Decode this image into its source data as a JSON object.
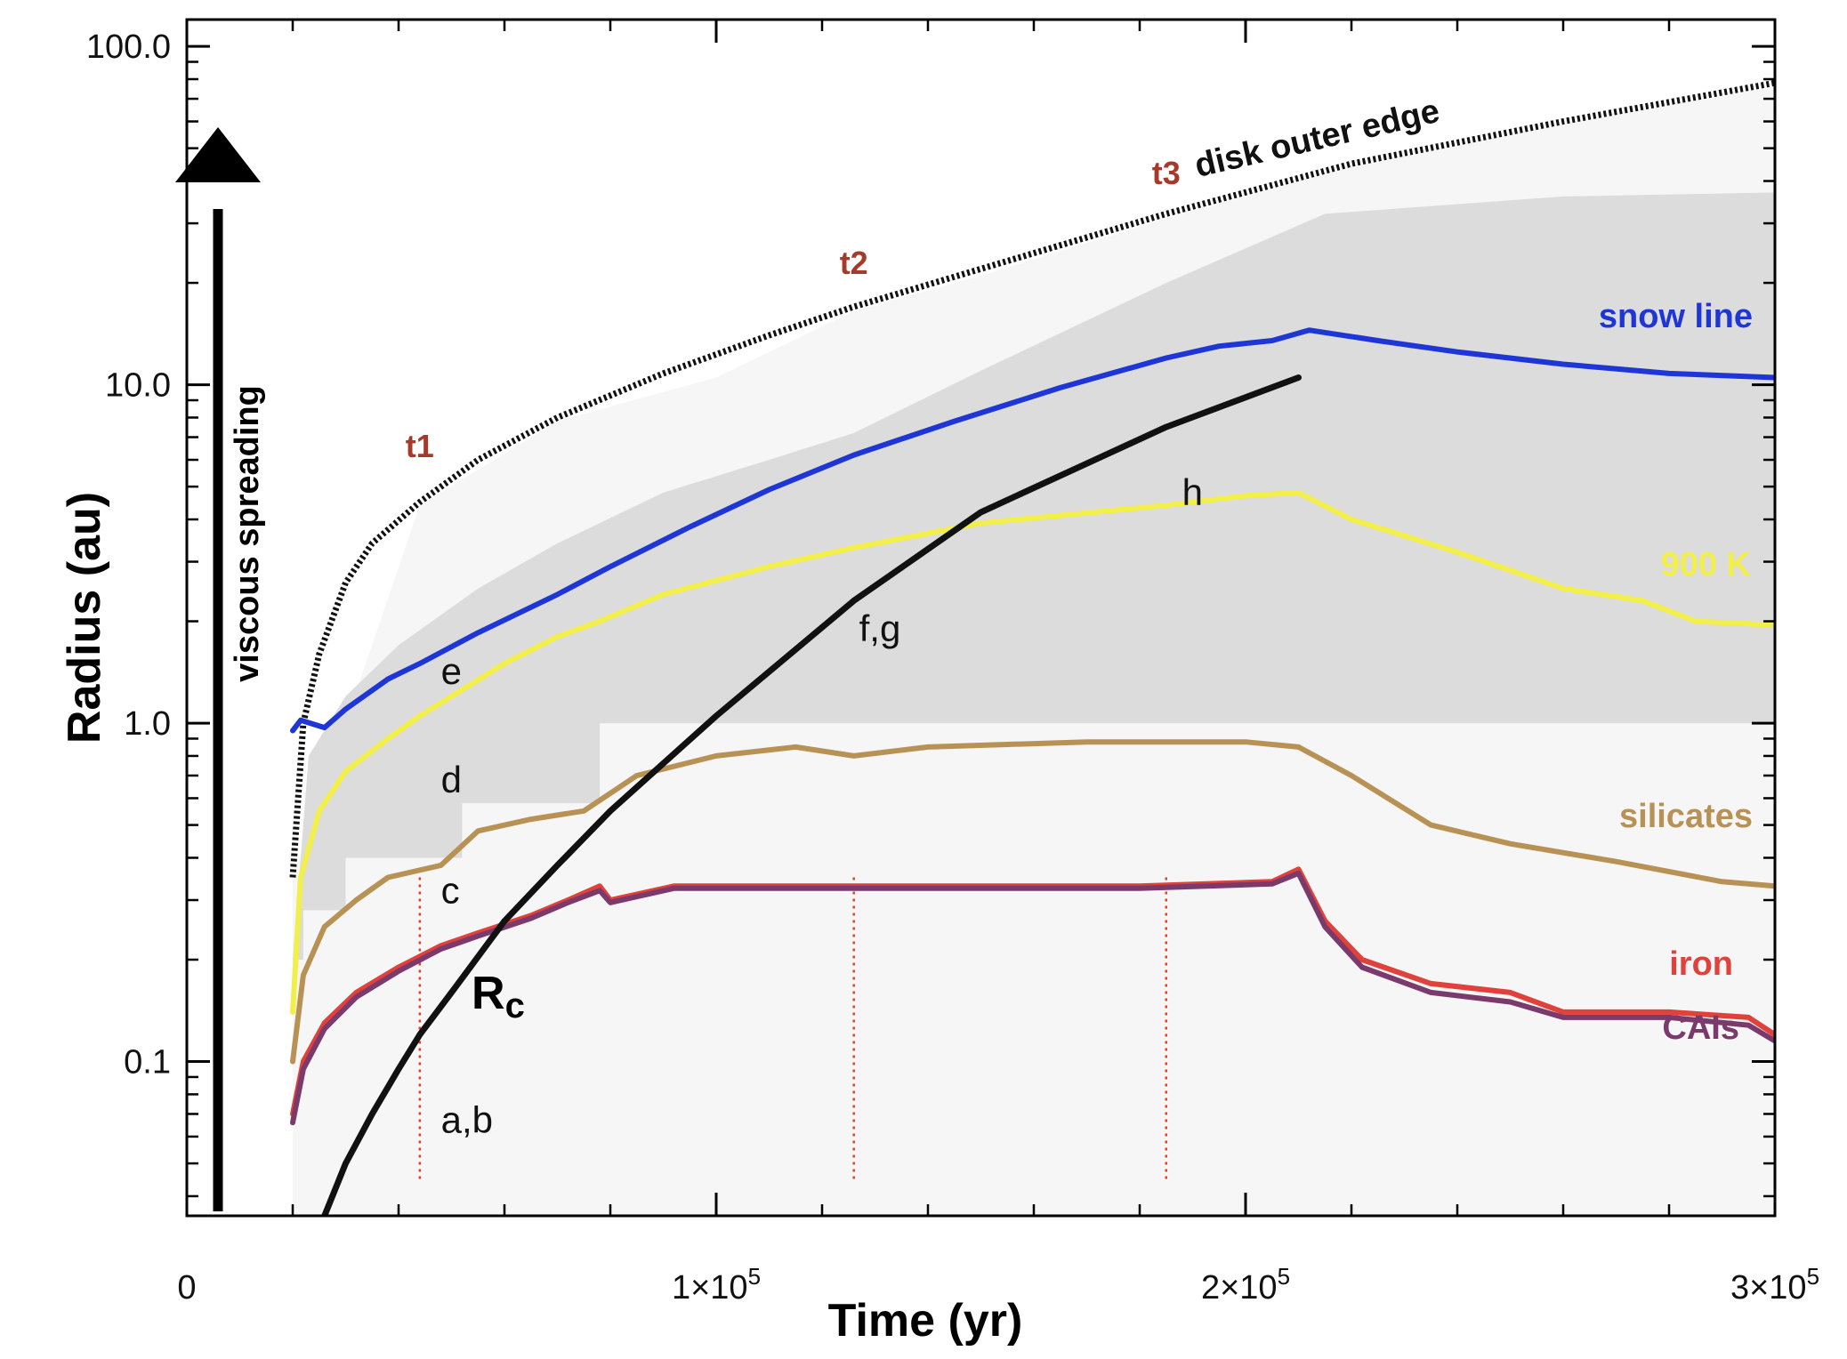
{
  "chart_data": {
    "type": "line",
    "xlabel": "Time (yr)",
    "ylabel": "Radius (au)",
    "xlim": [
      0,
      300000
    ],
    "ylim": [
      0.035,
      120
    ],
    "yscale": "log",
    "x_ticks": [
      {
        "value": 0,
        "label": "0"
      },
      {
        "value": 100000,
        "label": "1×10",
        "sup": "5"
      },
      {
        "value": 200000,
        "label": "2×10",
        "sup": "5"
      },
      {
        "value": 300000,
        "label": "3×10",
        "sup": "5"
      }
    ],
    "y_ticks": [
      {
        "value": 0.1,
        "label": "0.1"
      },
      {
        "value": 1.0,
        "label": "1.0"
      },
      {
        "value": 10.0,
        "label": "10.0"
      },
      {
        "value": 100.0,
        "label": "100.0"
      }
    ],
    "arrow_label": "viscous spreading",
    "time_markers": [
      {
        "name": "t1",
        "x": 44000
      },
      {
        "name": "t2",
        "x": 126000
      },
      {
        "name": "t3",
        "x": 185000
      }
    ],
    "series": [
      {
        "name": "disk outer edge",
        "color": "#111111",
        "style": "dotted",
        "x": [
          20000,
          22000,
          25000,
          30000,
          35000,
          44000,
          55000,
          70000,
          90000,
          110000,
          126000,
          150000,
          185000,
          220000,
          260000,
          300000
        ],
        "y": [
          0.35,
          1.0,
          1.6,
          2.6,
          3.4,
          4.5,
          6.0,
          8.0,
          10.8,
          14.0,
          17.0,
          22.0,
          32.0,
          45.0,
          60.0,
          78.0
        ]
      },
      {
        "name": "snow line",
        "color": "#1f36d6",
        "style": "solid",
        "x": [
          20000,
          21500,
          26000,
          30000,
          38000,
          44000,
          55000,
          70000,
          80000,
          95000,
          110000,
          126000,
          145000,
          165000,
          185000,
          195000,
          205000,
          212000,
          225000,
          240000,
          260000,
          280000,
          300000
        ],
        "y": [
          0.95,
          1.02,
          0.97,
          1.1,
          1.35,
          1.5,
          1.85,
          2.4,
          2.9,
          3.8,
          4.9,
          6.2,
          7.8,
          9.8,
          12.0,
          13.0,
          13.5,
          14.5,
          13.5,
          12.5,
          11.5,
          10.8,
          10.5
        ]
      },
      {
        "name": "900 K",
        "color": "#f2ee4a",
        "style": "solid",
        "x": [
          20000,
          21500,
          25000,
          30000,
          38000,
          44000,
          50000,
          60000,
          70000,
          78000,
          90000,
          110000,
          126000,
          150000,
          185000,
          200000,
          210000,
          220000,
          240000,
          260000,
          275000,
          285000,
          300000
        ],
        "y": [
          0.14,
          0.35,
          0.55,
          0.72,
          0.9,
          1.05,
          1.2,
          1.5,
          1.8,
          2.0,
          2.4,
          2.9,
          3.3,
          3.9,
          4.4,
          4.7,
          4.8,
          4.0,
          3.2,
          2.5,
          2.3,
          2.0,
          1.95
        ]
      },
      {
        "name": "silicates",
        "color": "#b89255",
        "style": "solid",
        "x": [
          20000,
          22000,
          26000,
          32000,
          38000,
          48000,
          55000,
          65000,
          75000,
          85000,
          100000,
          115000,
          126000,
          140000,
          170000,
          200000,
          210000,
          220000,
          235000,
          250000,
          270000,
          290000,
          300000
        ],
        "y": [
          0.1,
          0.18,
          0.25,
          0.3,
          0.35,
          0.38,
          0.48,
          0.52,
          0.55,
          0.7,
          0.8,
          0.85,
          0.8,
          0.85,
          0.88,
          0.88,
          0.85,
          0.7,
          0.5,
          0.44,
          0.39,
          0.34,
          0.33
        ]
      },
      {
        "name": "iron",
        "color": "#e0413a",
        "style": "solid",
        "x": [
          20000,
          22000,
          26000,
          32000,
          40000,
          48000,
          55000,
          65000,
          72000,
          78000,
          80000,
          92000,
          120000,
          150000,
          180000,
          205000,
          210000,
          215000,
          222000,
          235000,
          250000,
          260000,
          280000,
          295000,
          300000
        ],
        "y": [
          0.07,
          0.1,
          0.13,
          0.16,
          0.19,
          0.22,
          0.24,
          0.27,
          0.3,
          0.33,
          0.3,
          0.33,
          0.33,
          0.33,
          0.33,
          0.34,
          0.37,
          0.26,
          0.2,
          0.17,
          0.16,
          0.14,
          0.14,
          0.135,
          0.12
        ]
      },
      {
        "name": "CAIs",
        "color": "#7a3a6b",
        "style": "solid",
        "x": [
          20000,
          22000,
          26000,
          32000,
          40000,
          48000,
          55000,
          65000,
          72000,
          78000,
          80000,
          92000,
          120000,
          150000,
          180000,
          205000,
          210000,
          215000,
          222000,
          235000,
          250000,
          260000,
          280000,
          295000,
          300000
        ],
        "y": [
          0.066,
          0.095,
          0.125,
          0.155,
          0.185,
          0.215,
          0.235,
          0.265,
          0.295,
          0.32,
          0.295,
          0.325,
          0.325,
          0.325,
          0.325,
          0.335,
          0.36,
          0.25,
          0.19,
          0.16,
          0.15,
          0.135,
          0.135,
          0.128,
          0.115
        ]
      },
      {
        "name": "Rc",
        "label_main": "R",
        "label_sub": "c",
        "color": "#111111",
        "style": "bold",
        "x": [
          26000,
          30000,
          35000,
          40000,
          44000,
          50000,
          60000,
          70000,
          80000,
          100000,
          126000,
          150000,
          185000,
          210000
        ],
        "y": [
          0.035,
          0.05,
          0.07,
          0.095,
          0.12,
          0.16,
          0.26,
          0.38,
          0.55,
          1.05,
          2.3,
          4.2,
          7.5,
          10.5
        ]
      }
    ],
    "shaded_regions": [
      {
        "name": "light gray envelope",
        "color": "#f6f6f6",
        "x": [
          20000,
          44000,
          70000,
          100000,
          126000,
          150000,
          185000,
          220000,
          260000,
          300000
        ],
        "upper": [
          0.35,
          4.4,
          7.8,
          10.5,
          16.5,
          21.0,
          31.0,
          44.0,
          59.0,
          76.0
        ],
        "lower": 0.035
      },
      {
        "name": "gray region",
        "color": "#dcdcdc",
        "x": [
          20000,
          23000,
          30000,
          40000,
          55000,
          70000,
          90000,
          110000,
          126000,
          150000,
          185000,
          215000,
          260000,
          300000
        ],
        "upper": [
          0.2,
          0.8,
          1.2,
          1.7,
          2.5,
          3.4,
          4.8,
          6.0,
          7.2,
          11.0,
          20.0,
          32.0,
          36.0,
          37.0
        ],
        "lower_steps": [
          [
            20000,
            0.2
          ],
          [
            22000,
            0.28
          ],
          [
            30000,
            0.4
          ],
          [
            52000,
            0.58
          ],
          [
            78000,
            1.0
          ],
          [
            300000,
            1.0
          ]
        ]
      }
    ],
    "annotations": [
      {
        "text": "e",
        "x": 48000,
        "y": 1.42
      },
      {
        "text": "d",
        "x": 48000,
        "y": 0.68
      },
      {
        "text": "c",
        "x": 48000,
        "y": 0.32
      },
      {
        "text": "a,b",
        "x": 48000,
        "y": 0.067
      },
      {
        "text": "f,g",
        "x": 127000,
        "y": 1.9
      },
      {
        "text": "h",
        "x": 188000,
        "y": 4.8
      }
    ]
  },
  "colors": {
    "time_marker": "#d9442f",
    "marker_label": "#a63a2a"
  }
}
